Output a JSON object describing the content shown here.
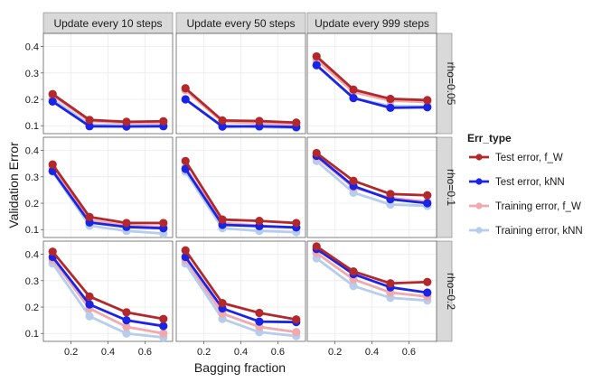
{
  "chart_data": {
    "type": "line",
    "xlabel": "Bagging fraction",
    "ylabel": "Validation Error",
    "x": [
      0.1,
      0.3,
      0.5,
      0.7
    ],
    "xticks": [
      0.2,
      0.4,
      0.6
    ],
    "yticks": [
      0.1,
      0.2,
      0.3,
      0.4
    ],
    "xlim": [
      0.05,
      0.75
    ],
    "ylim": [
      0.07,
      0.45
    ],
    "columns": [
      "Update every 10 steps",
      "Update every 50 steps",
      "Update every 999 steps"
    ],
    "rows": [
      "rho=0.05",
      "rho=0.1",
      "rho=0.2"
    ],
    "legend": {
      "title": "Err_type",
      "position": "right",
      "entries": [
        {
          "name": "Test error, f_W",
          "color": "#b2282b"
        },
        {
          "name": "Test error, kNN",
          "color": "#1b24e6"
        },
        {
          "name": "Training error, f_W",
          "color": "#f0a9ac"
        },
        {
          "name": "Training error, kNN",
          "color": "#b6cdec"
        }
      ]
    },
    "panels": [
      {
        "row": 0,
        "col": 0,
        "series": [
          {
            "name": "Test error, f_W",
            "values": [
              0.22,
              0.122,
              0.115,
              0.117
            ]
          },
          {
            "name": "Test error, kNN",
            "values": [
              0.192,
              0.098,
              0.097,
              0.098
            ]
          },
          {
            "name": "Training error, f_W",
            "values": [
              0.215,
              0.118,
              0.11,
              0.11
            ]
          },
          {
            "name": "Training error, kNN",
            "values": [
              0.2,
              0.105,
              0.1,
              0.1
            ]
          }
        ]
      },
      {
        "row": 0,
        "col": 1,
        "series": [
          {
            "name": "Test error, f_W",
            "values": [
              0.242,
              0.12,
              0.118,
              0.112
            ]
          },
          {
            "name": "Test error, kNN",
            "values": [
              0.2,
              0.097,
              0.098,
              0.095
            ]
          },
          {
            "name": "Training error, f_W",
            "values": [
              0.235,
              0.115,
              0.11,
              0.105
            ]
          },
          {
            "name": "Training error, kNN",
            "values": [
              0.2,
              0.1,
              0.095,
              0.092
            ]
          }
        ]
      },
      {
        "row": 0,
        "col": 2,
        "series": [
          {
            "name": "Test error, f_W",
            "values": [
              0.363,
              0.237,
              0.202,
              0.197
            ]
          },
          {
            "name": "Test error, kNN",
            "values": [
              0.33,
              0.205,
              0.168,
              0.17
            ]
          },
          {
            "name": "Training error, f_W",
            "values": [
              0.35,
              0.228,
              0.195,
              0.19
            ]
          },
          {
            "name": "Training error, kNN",
            "values": [
              0.328,
              0.205,
              0.175,
              0.172
            ]
          }
        ]
      },
      {
        "row": 1,
        "col": 0,
        "series": [
          {
            "name": "Test error, f_W",
            "values": [
              0.347,
              0.148,
              0.125,
              0.125
            ]
          },
          {
            "name": "Test error, kNN",
            "values": [
              0.322,
              0.127,
              0.11,
              0.105
            ]
          },
          {
            "name": "Training error, f_W",
            "values": [
              0.335,
              0.135,
              0.115,
              0.11
            ]
          },
          {
            "name": "Training error, kNN",
            "values": [
              0.32,
              0.115,
              0.095,
              0.085
            ]
          }
        ]
      },
      {
        "row": 1,
        "col": 1,
        "series": [
          {
            "name": "Test error, f_W",
            "values": [
              0.36,
              0.138,
              0.133,
              0.125
            ]
          },
          {
            "name": "Test error, kNN",
            "values": [
              0.33,
              0.118,
              0.113,
              0.108
            ]
          },
          {
            "name": "Training error, f_W",
            "values": [
              0.335,
              0.125,
              0.115,
              0.108
            ]
          },
          {
            "name": "Training error, kNN",
            "values": [
              0.32,
              0.105,
              0.095,
              0.09
            ]
          }
        ]
      },
      {
        "row": 1,
        "col": 2,
        "series": [
          {
            "name": "Test error, f_W",
            "values": [
              0.39,
              0.285,
              0.235,
              0.23
            ]
          },
          {
            "name": "Test error, kNN",
            "values": [
              0.38,
              0.265,
              0.215,
              0.2
            ]
          },
          {
            "name": "Training error, f_W",
            "values": [
              0.375,
              0.26,
              0.22,
              0.205
            ]
          },
          {
            "name": "Training error, kNN",
            "values": [
              0.36,
              0.24,
              0.195,
              0.19
            ]
          }
        ]
      },
      {
        "row": 2,
        "col": 0,
        "series": [
          {
            "name": "Test error, f_W",
            "values": [
              0.41,
              0.24,
              0.18,
              0.155
            ]
          },
          {
            "name": "Test error, kNN",
            "values": [
              0.39,
              0.21,
              0.15,
              0.128
            ]
          },
          {
            "name": "Training error, f_W",
            "values": [
              0.38,
              0.195,
              0.125,
              0.1
            ]
          },
          {
            "name": "Training error, kNN",
            "values": [
              0.365,
              0.165,
              0.1,
              0.085
            ]
          }
        ]
      },
      {
        "row": 2,
        "col": 1,
        "series": [
          {
            "name": "Test error, f_W",
            "values": [
              0.415,
              0.215,
              0.178,
              0.153
            ]
          },
          {
            "name": "Test error, kNN",
            "values": [
              0.39,
              0.195,
              0.145,
              0.143
            ]
          },
          {
            "name": "Training error, f_W",
            "values": [
              0.38,
              0.175,
              0.125,
              0.105
            ]
          },
          {
            "name": "Training error, kNN",
            "values": [
              0.365,
              0.155,
              0.105,
              0.09
            ]
          }
        ]
      },
      {
        "row": 2,
        "col": 2,
        "series": [
          {
            "name": "Test error, f_W",
            "values": [
              0.43,
              0.335,
              0.29,
              0.295
            ]
          },
          {
            "name": "Test error, kNN",
            "values": [
              0.42,
              0.325,
              0.275,
              0.255
            ]
          },
          {
            "name": "Training error, f_W",
            "values": [
              0.405,
              0.305,
              0.255,
              0.24
            ]
          },
          {
            "name": "Training error, kNN",
            "values": [
              0.385,
              0.28,
              0.235,
              0.225
            ]
          }
        ]
      }
    ]
  }
}
